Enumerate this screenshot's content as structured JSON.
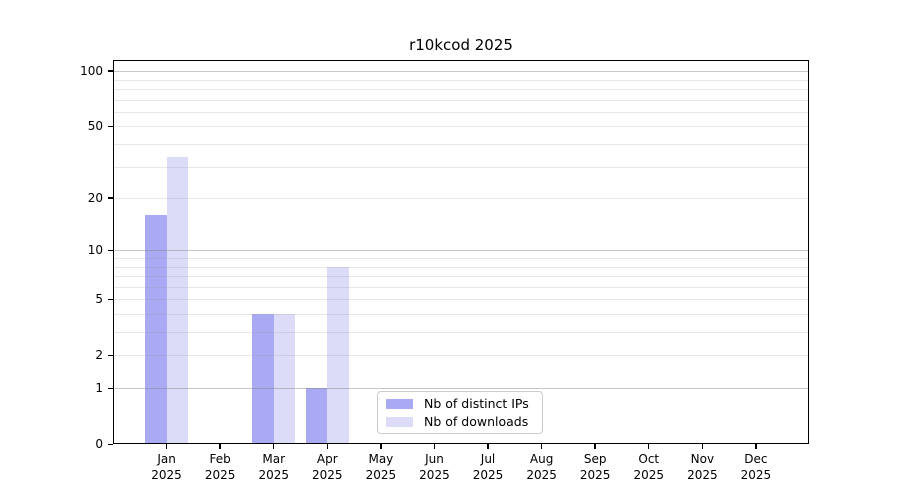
{
  "chart_data": {
    "type": "bar",
    "title": "r10kcod 2025",
    "categories": [
      "Jan",
      "Feb",
      "Mar",
      "Apr",
      "May",
      "Jun",
      "Jul",
      "Aug",
      "Sep",
      "Oct",
      "Nov",
      "Dec"
    ],
    "year_label": "2025",
    "series": [
      {
        "name": "Nb of distinct IPs",
        "color": "#aaaaf4",
        "values": [
          16,
          0,
          4,
          1,
          0,
          0,
          0,
          0,
          0,
          0,
          0,
          0
        ]
      },
      {
        "name": "Nb of downloads",
        "color": "#dcdcf8",
        "values": [
          34,
          0,
          4,
          8,
          0,
          0,
          0,
          0,
          0,
          0,
          0,
          0
        ]
      }
    ],
    "yscale": "log1p",
    "yticks": [
      0,
      1,
      2,
      5,
      10,
      20,
      50,
      100
    ],
    "ylim": [
      0,
      115
    ],
    "grid": {
      "major_values": [
        1,
        10,
        100
      ],
      "minor_values": [
        2,
        3,
        4,
        5,
        6,
        7,
        8,
        9,
        20,
        30,
        40,
        50,
        60,
        70,
        80,
        90
      ]
    },
    "legend_position": "inside-lower-center",
    "background_color": "#ffffff",
    "axis_color": "#000000"
  }
}
